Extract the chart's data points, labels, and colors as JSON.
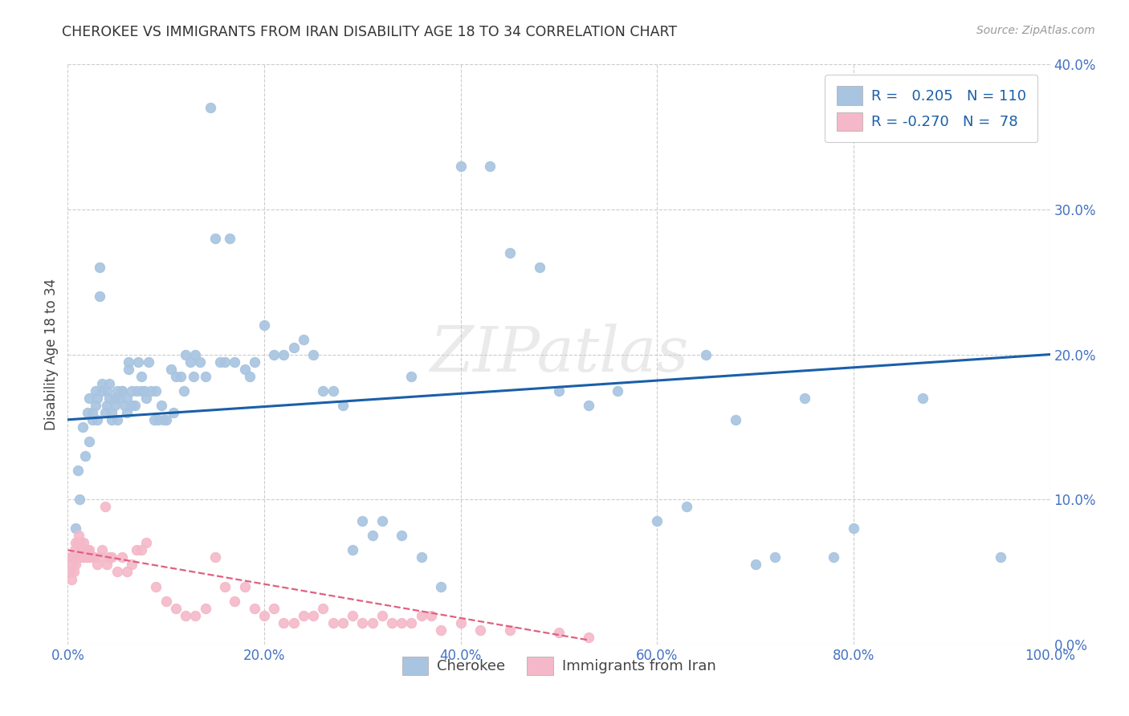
{
  "title": "CHEROKEE VS IMMIGRANTS FROM IRAN DISABILITY AGE 18 TO 34 CORRELATION CHART",
  "source": "Source: ZipAtlas.com",
  "ylabel": "Disability Age 18 to 34",
  "xlim": [
    0,
    1.0
  ],
  "ylim": [
    0,
    0.4
  ],
  "watermark": "ZIPatlas",
  "legend_cherokee_R": "0.205",
  "legend_cherokee_N": "110",
  "legend_iran_R": "-0.270",
  "legend_iran_N": "78",
  "cherokee_color": "#a8c4e0",
  "cherokee_line_color": "#1a5fa8",
  "iran_color": "#f4b8c8",
  "iran_line_color": "#e06080",
  "cherokee_scatter_x": [
    0.005,
    0.008,
    0.01,
    0.012,
    0.015,
    0.018,
    0.02,
    0.022,
    0.022,
    0.025,
    0.025,
    0.028,
    0.028,
    0.03,
    0.03,
    0.032,
    0.032,
    0.035,
    0.035,
    0.038,
    0.04,
    0.04,
    0.042,
    0.042,
    0.045,
    0.045,
    0.048,
    0.048,
    0.05,
    0.05,
    0.052,
    0.055,
    0.055,
    0.058,
    0.06,
    0.06,
    0.062,
    0.062,
    0.065,
    0.065,
    0.068,
    0.07,
    0.072,
    0.075,
    0.075,
    0.078,
    0.08,
    0.082,
    0.085,
    0.088,
    0.09,
    0.092,
    0.095,
    0.098,
    0.1,
    0.105,
    0.108,
    0.11,
    0.115,
    0.118,
    0.12,
    0.125,
    0.128,
    0.13,
    0.135,
    0.14,
    0.145,
    0.15,
    0.155,
    0.16,
    0.165,
    0.17,
    0.18,
    0.185,
    0.19,
    0.2,
    0.21,
    0.22,
    0.23,
    0.24,
    0.25,
    0.26,
    0.27,
    0.28,
    0.29,
    0.3,
    0.31,
    0.32,
    0.34,
    0.35,
    0.36,
    0.38,
    0.4,
    0.43,
    0.45,
    0.48,
    0.5,
    0.53,
    0.56,
    0.6,
    0.63,
    0.65,
    0.68,
    0.7,
    0.72,
    0.75,
    0.78,
    0.8,
    0.87,
    0.95
  ],
  "cherokee_scatter_y": [
    0.06,
    0.08,
    0.12,
    0.1,
    0.15,
    0.13,
    0.16,
    0.14,
    0.17,
    0.155,
    0.16,
    0.165,
    0.175,
    0.17,
    0.155,
    0.26,
    0.24,
    0.175,
    0.18,
    0.16,
    0.165,
    0.175,
    0.17,
    0.18,
    0.155,
    0.16,
    0.165,
    0.17,
    0.175,
    0.155,
    0.17,
    0.175,
    0.175,
    0.165,
    0.16,
    0.17,
    0.19,
    0.195,
    0.165,
    0.175,
    0.165,
    0.175,
    0.195,
    0.175,
    0.185,
    0.175,
    0.17,
    0.195,
    0.175,
    0.155,
    0.175,
    0.155,
    0.165,
    0.155,
    0.155,
    0.19,
    0.16,
    0.185,
    0.185,
    0.175,
    0.2,
    0.195,
    0.185,
    0.2,
    0.195,
    0.185,
    0.37,
    0.28,
    0.195,
    0.195,
    0.28,
    0.195,
    0.19,
    0.185,
    0.195,
    0.22,
    0.2,
    0.2,
    0.205,
    0.21,
    0.2,
    0.175,
    0.175,
    0.165,
    0.065,
    0.085,
    0.075,
    0.085,
    0.075,
    0.185,
    0.06,
    0.04,
    0.33,
    0.33,
    0.27,
    0.26,
    0.175,
    0.165,
    0.175,
    0.085,
    0.095,
    0.2,
    0.155,
    0.055,
    0.06,
    0.17,
    0.06,
    0.08,
    0.17,
    0.06
  ],
  "iran_scatter_x": [
    0.002,
    0.003,
    0.004,
    0.005,
    0.005,
    0.006,
    0.007,
    0.007,
    0.008,
    0.008,
    0.009,
    0.01,
    0.01,
    0.011,
    0.012,
    0.012,
    0.013,
    0.014,
    0.015,
    0.016,
    0.017,
    0.018,
    0.019,
    0.02,
    0.021,
    0.022,
    0.023,
    0.025,
    0.027,
    0.03,
    0.032,
    0.035,
    0.038,
    0.04,
    0.042,
    0.045,
    0.05,
    0.055,
    0.06,
    0.065,
    0.07,
    0.075,
    0.08,
    0.09,
    0.1,
    0.11,
    0.12,
    0.13,
    0.14,
    0.15,
    0.16,
    0.17,
    0.18,
    0.19,
    0.2,
    0.21,
    0.22,
    0.23,
    0.24,
    0.25,
    0.26,
    0.27,
    0.28,
    0.29,
    0.3,
    0.31,
    0.32,
    0.33,
    0.34,
    0.35,
    0.36,
    0.37,
    0.38,
    0.4,
    0.42,
    0.45,
    0.5,
    0.53
  ],
  "iran_scatter_y": [
    0.05,
    0.06,
    0.045,
    0.055,
    0.06,
    0.05,
    0.06,
    0.065,
    0.055,
    0.07,
    0.06,
    0.065,
    0.07,
    0.075,
    0.06,
    0.065,
    0.07,
    0.06,
    0.065,
    0.07,
    0.06,
    0.065,
    0.06,
    0.065,
    0.06,
    0.065,
    0.06,
    0.06,
    0.06,
    0.055,
    0.06,
    0.065,
    0.095,
    0.055,
    0.06,
    0.06,
    0.05,
    0.06,
    0.05,
    0.055,
    0.065,
    0.065,
    0.07,
    0.04,
    0.03,
    0.025,
    0.02,
    0.02,
    0.025,
    0.06,
    0.04,
    0.03,
    0.04,
    0.025,
    0.02,
    0.025,
    0.015,
    0.015,
    0.02,
    0.02,
    0.025,
    0.015,
    0.015,
    0.02,
    0.015,
    0.015,
    0.02,
    0.015,
    0.015,
    0.015,
    0.02,
    0.02,
    0.01,
    0.015,
    0.01,
    0.01,
    0.008,
    0.005
  ],
  "cherokee_trend_x": [
    0.0,
    1.0
  ],
  "cherokee_trend_y": [
    0.155,
    0.2
  ],
  "iran_trend_x": [
    0.0,
    0.53
  ],
  "iran_trend_y": [
    0.065,
    0.003
  ],
  "background_color": "#ffffff",
  "grid_color": "#cccccc",
  "tick_color": "#4472c4",
  "yticks_vals": [
    0.0,
    0.1,
    0.2,
    0.3,
    0.4
  ],
  "xticks_vals": [
    0.0,
    0.2,
    0.4,
    0.6,
    0.8,
    1.0
  ]
}
